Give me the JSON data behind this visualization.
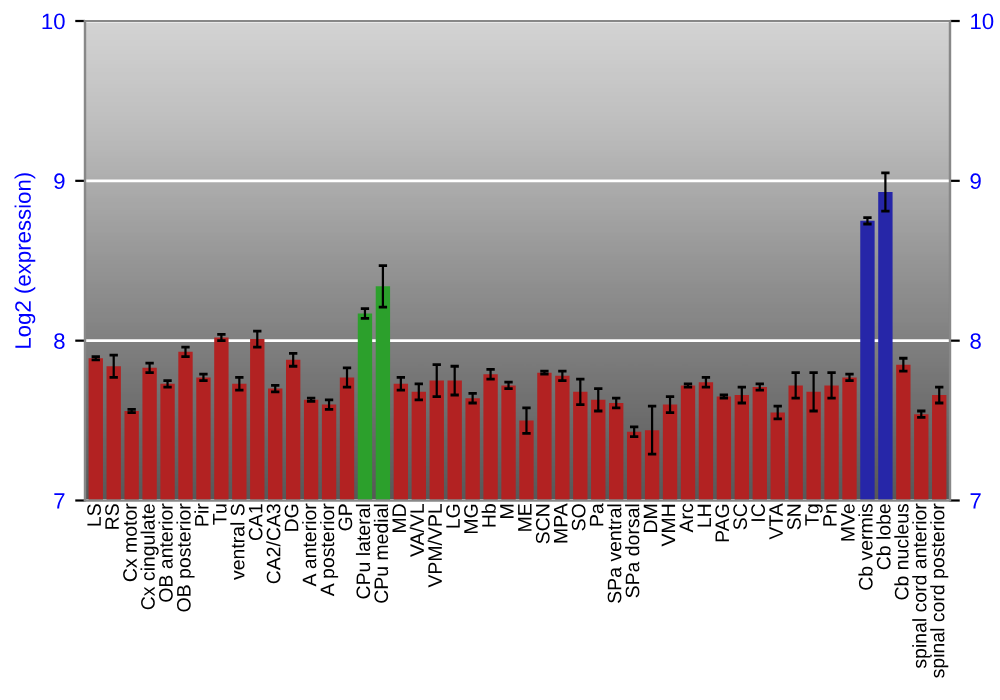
{
  "chart_data": {
    "type": "bar",
    "ylabel": "Log2 (expression)",
    "categories": [
      "LS",
      "RS",
      "Cx motor",
      "Cx cingulate",
      "OB anterior",
      "OB posterior",
      "Pir",
      "Tu",
      "ventral S",
      "CA1",
      "CA2/CA3",
      "DG",
      "A anterior",
      "A posterior",
      "GP",
      "CPu lateral",
      "CPu medial",
      "MD",
      "VA/VL",
      "VPM/VPL",
      "LG",
      "MG",
      "Hb",
      "M",
      "ME",
      "SCN",
      "MPA",
      "SO",
      "Pa",
      "SPa ventral",
      "SPa dorsal",
      "DM",
      "VMH",
      "Arc",
      "LH",
      "PAG",
      "SC",
      "IC",
      "VTA",
      "SN",
      "Tg",
      "Pn",
      "MVe",
      "Cb vermis",
      "Cb lobe",
      "Cb nucleus",
      "spinal cord anterior",
      "spinal cord posterior"
    ],
    "values": [
      7.89,
      7.84,
      7.56,
      7.83,
      7.73,
      7.93,
      7.77,
      8.02,
      7.73,
      8.01,
      7.7,
      7.88,
      7.63,
      7.6,
      7.77,
      8.17,
      8.34,
      7.73,
      7.68,
      7.75,
      7.75,
      7.64,
      7.79,
      7.72,
      7.5,
      7.8,
      7.78,
      7.68,
      7.63,
      7.61,
      7.43,
      7.44,
      7.6,
      7.72,
      7.74,
      7.65,
      7.66,
      7.71,
      7.55,
      7.72,
      7.68,
      7.72,
      7.77,
      8.75,
      8.93,
      7.85,
      7.54,
      7.66
    ],
    "errors": [
      0.01,
      0.07,
      0.01,
      0.03,
      0.02,
      0.03,
      0.02,
      0.02,
      0.04,
      0.05,
      0.02,
      0.04,
      0.01,
      0.03,
      0.06,
      0.03,
      0.13,
      0.04,
      0.05,
      0.1,
      0.09,
      0.03,
      0.03,
      0.02,
      0.08,
      0.01,
      0.03,
      0.08,
      0.07,
      0.03,
      0.03,
      0.15,
      0.05,
      0.01,
      0.03,
      0.01,
      0.05,
      0.02,
      0.04,
      0.08,
      0.12,
      0.08,
      0.02,
      0.02,
      0.12,
      0.04,
      0.02,
      0.05
    ],
    "colors": [
      "#b22222",
      "#b22222",
      "#b22222",
      "#b22222",
      "#b22222",
      "#b22222",
      "#b22222",
      "#b22222",
      "#b22222",
      "#b22222",
      "#b22222",
      "#b22222",
      "#b22222",
      "#b22222",
      "#b22222",
      "#2ca02c",
      "#2ca02c",
      "#b22222",
      "#b22222",
      "#b22222",
      "#b22222",
      "#b22222",
      "#b22222",
      "#b22222",
      "#b22222",
      "#b22222",
      "#b22222",
      "#b22222",
      "#b22222",
      "#b22222",
      "#b22222",
      "#b22222",
      "#b22222",
      "#b22222",
      "#b22222",
      "#b22222",
      "#b22222",
      "#b22222",
      "#b22222",
      "#b22222",
      "#b22222",
      "#b22222",
      "#b22222",
      "#2626a8",
      "#2626a8",
      "#b22222",
      "#b22222",
      "#b22222"
    ],
    "ylim": [
      7,
      10
    ],
    "yticks": [
      7,
      8,
      9,
      10
    ],
    "y2lim": [
      7,
      10
    ],
    "y2ticks": [
      7,
      8,
      9,
      10
    ],
    "grid": "y"
  }
}
